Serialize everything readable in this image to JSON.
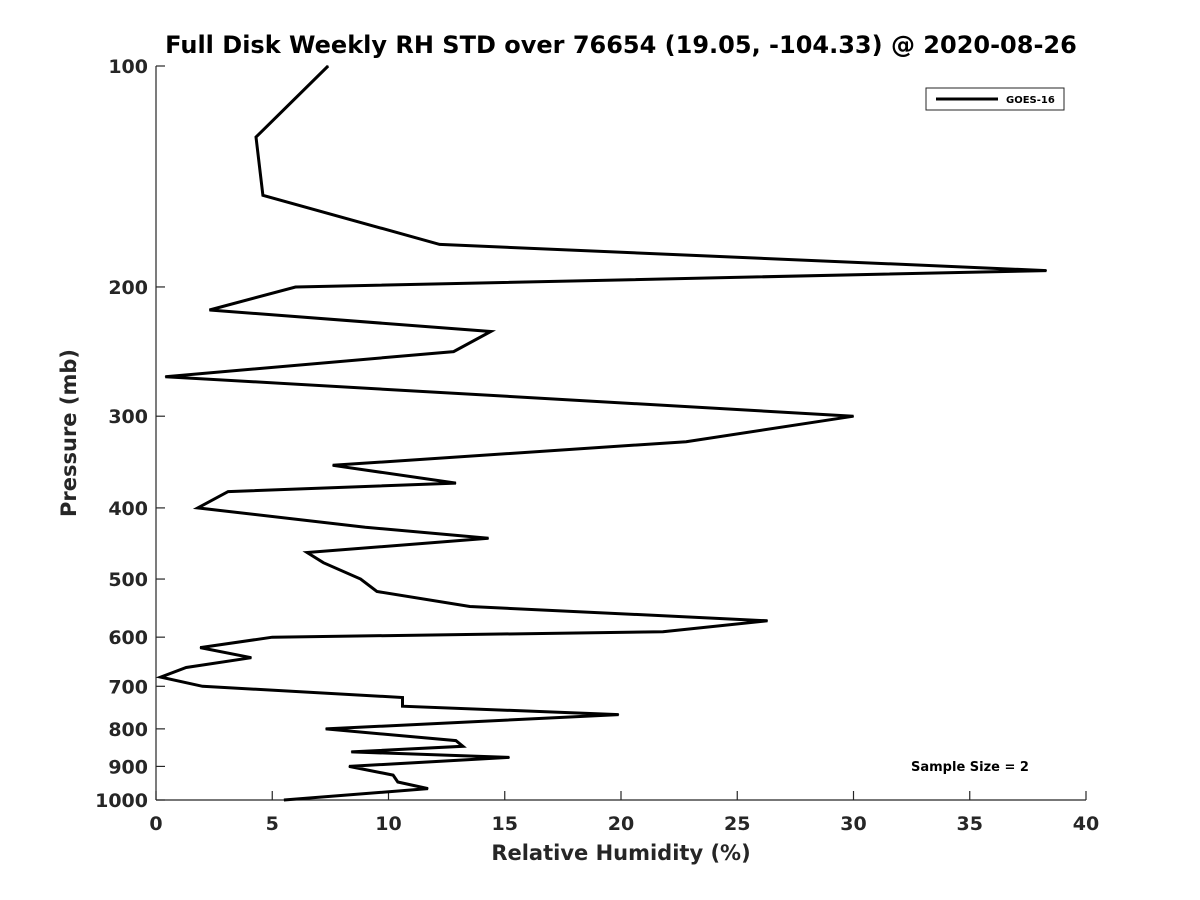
{
  "chart_data": {
    "type": "line",
    "title": "Full Disk Weekly RH STD over 76654 (19.05, -104.33) @ 2020-08-26",
    "xlabel": "Relative Humidity (%)",
    "ylabel": "Pressure (mb)",
    "xlim": [
      0,
      40
    ],
    "ylim": [
      1000,
      100
    ],
    "y_scale": "log",
    "y_reversed": true,
    "xticks": [
      0,
      5,
      10,
      15,
      20,
      25,
      30,
      35,
      40
    ],
    "yticks": [
      100,
      200,
      300,
      400,
      500,
      600,
      700,
      800,
      900,
      1000
    ],
    "grid": false,
    "legend": {
      "position": "top-right",
      "entries": [
        "GOES-16"
      ]
    },
    "annotation": "Sample Size = 2",
    "series": [
      {
        "name": "GOES-16",
        "color": "#000000",
        "points": [
          [
            7.4,
            100
          ],
          [
            4.3,
            125
          ],
          [
            4.6,
            150
          ],
          [
            12.2,
            175
          ],
          [
            38.3,
            190
          ],
          [
            6.0,
            200
          ],
          [
            2.3,
            215
          ],
          [
            14.4,
            230
          ],
          [
            12.8,
            245
          ],
          [
            0.4,
            265
          ],
          [
            30.0,
            300
          ],
          [
            22.8,
            325
          ],
          [
            7.6,
            350
          ],
          [
            12.9,
            370
          ],
          [
            3.1,
            380
          ],
          [
            1.8,
            400
          ],
          [
            9.0,
            425
          ],
          [
            14.3,
            440
          ],
          [
            6.5,
            460
          ],
          [
            7.2,
            475
          ],
          [
            8.8,
            500
          ],
          [
            9.5,
            520
          ],
          [
            13.5,
            545
          ],
          [
            26.3,
            570
          ],
          [
            21.8,
            590
          ],
          [
            5.0,
            600
          ],
          [
            1.9,
            620
          ],
          [
            4.1,
            640
          ],
          [
            1.3,
            660
          ],
          [
            0.2,
            680
          ],
          [
            2.0,
            700
          ],
          [
            10.6,
            725
          ],
          [
            10.6,
            745
          ],
          [
            19.9,
            765
          ],
          [
            7.3,
            800
          ],
          [
            12.9,
            830
          ],
          [
            13.2,
            845
          ],
          [
            8.4,
            860
          ],
          [
            15.2,
            875
          ],
          [
            8.3,
            900
          ],
          [
            10.2,
            925
          ],
          [
            10.4,
            945
          ],
          [
            11.7,
            965
          ],
          [
            5.5,
            1000
          ]
        ]
      }
    ]
  }
}
